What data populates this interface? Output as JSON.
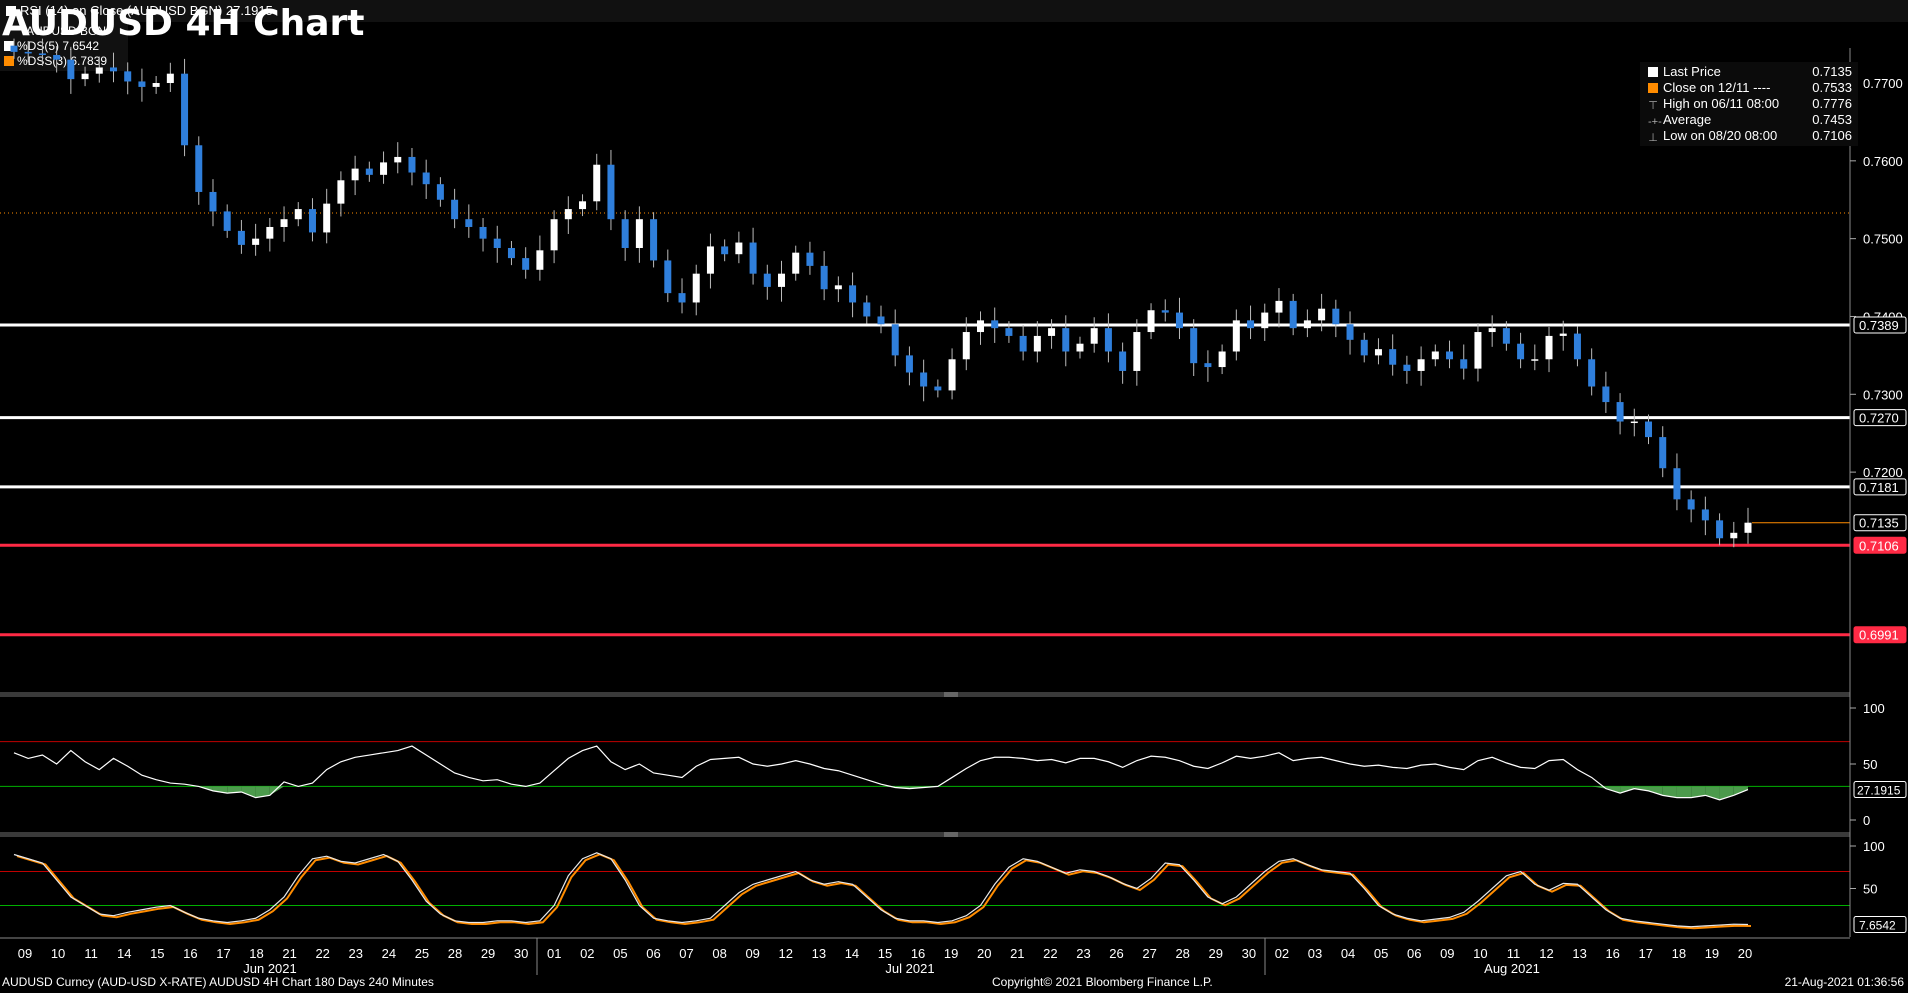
{
  "title": "AUDUSD 4H Chart",
  "footer": {
    "left": "AUDUSD Curncy (AUD-USD X-RATE) AUDUSD 4H Chart 180 Days 240 Minutes",
    "center": "Copyright© 2021 Bloomberg Finance L.P.",
    "right": "21-Aug-2021 01:36:56"
  },
  "legend": {
    "items": [
      {
        "label": "Last Price",
        "value": "0.7135",
        "color": "#ffffff"
      },
      {
        "label": "Close on 12/11 ----",
        "value": "0.7533",
        "color": "#ff8c00"
      },
      {
        "label": "High on 06/11 08:00",
        "value": "0.7776",
        "color": "#cfcfcf"
      },
      {
        "label": "Average",
        "value": "0.7453",
        "color": "#cfcfcf"
      },
      {
        "label": "Low on 08/20 08:00",
        "value": "0.7106",
        "color": "#cfcfcf"
      }
    ]
  },
  "rsi_legend": "RSI (14)  on Close (AUDUSD BGN) 27.1915",
  "sto_legend": {
    "name": "AUDUSD BGN",
    "ds": "%DS(5)  7.6542",
    "dss": "%DSS(3) 6.7839"
  },
  "colors": {
    "up": "#ffffff",
    "down": "#2f7fdc",
    "hline_white": "#ffffff",
    "hline_red": "#ff2a45",
    "close_dotted": "#ff8c00",
    "rsi_line": "#ffffff",
    "rsi_fill": "#4c9a4c",
    "sto_ds": "#e8e8e8",
    "sto_dss": "#ff8c00",
    "ob_line": "#c00000",
    "os_line": "#00b000"
  },
  "chart_data": {
    "type": "candlestick",
    "title": "AUDUSD 4H Chart",
    "ylim": [
      0.692,
      0.7745
    ],
    "price_ticks": [
      "0.7700",
      "0.7600",
      "0.7500",
      "0.7400",
      "0.7300",
      "0.7200"
    ],
    "x_day_labels": [
      "09",
      "10",
      "11",
      "14",
      "15",
      "16",
      "17",
      "18",
      "21",
      "22",
      "23",
      "24",
      "25",
      "28",
      "29",
      "30",
      "01",
      "02",
      "05",
      "06",
      "07",
      "08",
      "09",
      "12",
      "13",
      "14",
      "15",
      "16",
      "19",
      "20",
      "21",
      "22",
      "23",
      "26",
      "27",
      "28",
      "29",
      "30",
      "02",
      "03",
      "04",
      "05",
      "06",
      "09",
      "10",
      "11",
      "12",
      "13",
      "16",
      "17",
      "18",
      "19",
      "20"
    ],
    "month_labels": [
      "Jun 2021",
      "Jul 2021",
      "Aug 2021"
    ],
    "close_path": [
      0.774,
      0.7738,
      0.7736,
      0.773,
      0.7705,
      0.7712,
      0.772,
      0.7715,
      0.7702,
      0.7695,
      0.77,
      0.7712,
      0.762,
      0.756,
      0.7535,
      0.751,
      0.7492,
      0.75,
      0.7515,
      0.7525,
      0.7538,
      0.7508,
      0.7545,
      0.7575,
      0.759,
      0.7582,
      0.7598,
      0.7605,
      0.7585,
      0.757,
      0.755,
      0.7525,
      0.7515,
      0.75,
      0.7488,
      0.7475,
      0.746,
      0.7485,
      0.7525,
      0.7538,
      0.7548,
      0.7595,
      0.7525,
      0.7488,
      0.7525,
      0.7472,
      0.743,
      0.7418,
      0.7455,
      0.749,
      0.748,
      0.7495,
      0.7455,
      0.7438,
      0.7455,
      0.7482,
      0.7465,
      0.7435,
      0.744,
      0.7418,
      0.74,
      0.739,
      0.735,
      0.7328,
      0.731,
      0.7305,
      0.7345,
      0.738,
      0.7395,
      0.7385,
      0.7375,
      0.7355,
      0.7375,
      0.7385,
      0.7355,
      0.7365,
      0.7385,
      0.7355,
      0.733,
      0.738,
      0.7408,
      0.7405,
      0.7385,
      0.734,
      0.7335,
      0.7355,
      0.7395,
      0.7385,
      0.7405,
      0.742,
      0.7385,
      0.7395,
      0.741,
      0.739,
      0.737,
      0.735,
      0.7358,
      0.7338,
      0.733,
      0.7345,
      0.7355,
      0.7345,
      0.7333,
      0.738,
      0.7385,
      0.7365,
      0.7345,
      0.7345,
      0.7375,
      0.7378,
      0.7345,
      0.731,
      0.729,
      0.7265,
      0.7265,
      0.7245,
      0.7205,
      0.7165,
      0.7152,
      0.7138,
      0.7115,
      0.7122,
      0.7135
    ],
    "reference_lines": [
      {
        "value": 0.7389,
        "label": "0.7389",
        "color": "white"
      },
      {
        "value": 0.727,
        "label": "0.7270",
        "color": "white"
      },
      {
        "value": 0.7181,
        "label": "0.7181",
        "color": "white"
      },
      {
        "value": 0.7135,
        "label": "0.7135",
        "color": "last"
      },
      {
        "value": 0.7106,
        "label": "0.7106",
        "color": "red"
      },
      {
        "value": 0.6991,
        "label": "0.6991",
        "color": "red"
      }
    ],
    "close_dotted": 0.7533,
    "rsi": {
      "ylim": [
        0,
        100
      ],
      "ticks": [
        "100",
        "50",
        "0"
      ],
      "overbought": 70,
      "oversold": 30,
      "last_label": "27.1915",
      "values": [
        60,
        55,
        58,
        50,
        62,
        52,
        45,
        55,
        48,
        40,
        36,
        33,
        32,
        30,
        26,
        24,
        25,
        20,
        22,
        34,
        30,
        33,
        45,
        52,
        56,
        58,
        60,
        62,
        66,
        58,
        50,
        42,
        38,
        35,
        36,
        32,
        30,
        33,
        44,
        55,
        62,
        66,
        52,
        45,
        50,
        42,
        40,
        38,
        48,
        54,
        55,
        56,
        50,
        48,
        50,
        53,
        50,
        46,
        44,
        40,
        36,
        32,
        29,
        28,
        29,
        30,
        38,
        46,
        53,
        56,
        56,
        55,
        53,
        54,
        51,
        55,
        55,
        52,
        47,
        53,
        57,
        56,
        53,
        48,
        46,
        51,
        57,
        55,
        57,
        60,
        53,
        55,
        56,
        53,
        50,
        48,
        49,
        47,
        46,
        49,
        50,
        47,
        45,
        53,
        56,
        51,
        47,
        46,
        53,
        54,
        45,
        38,
        28,
        24,
        28,
        26,
        22,
        20,
        20,
        22,
        18,
        22,
        27.19
      ]
    },
    "stochastic": {
      "ylim": [
        0,
        100
      ],
      "ticks": [
        "100",
        "50"
      ],
      "overbought": 70,
      "oversold": 30,
      "last_label": "7.6542",
      "values": [
        90,
        85,
        80,
        60,
        40,
        30,
        20,
        18,
        22,
        25,
        28,
        30,
        22,
        15,
        12,
        10,
        12,
        15,
        25,
        40,
        65,
        85,
        88,
        82,
        80,
        85,
        90,
        82,
        60,
        35,
        20,
        12,
        10,
        10,
        12,
        12,
        10,
        12,
        30,
        65,
        85,
        92,
        85,
        60,
        30,
        15,
        12,
        10,
        12,
        15,
        30,
        45,
        55,
        60,
        65,
        70,
        60,
        55,
        58,
        55,
        40,
        25,
        15,
        12,
        12,
        10,
        12,
        18,
        30,
        55,
        75,
        85,
        82,
        75,
        68,
        72,
        70,
        64,
        56,
        50,
        62,
        80,
        78,
        60,
        40,
        32,
        40,
        55,
        70,
        82,
        85,
        78,
        72,
        70,
        68,
        50,
        30,
        20,
        15,
        12,
        14,
        16,
        22,
        35,
        50,
        65,
        70,
        55,
        48,
        56,
        55,
        40,
        25,
        15,
        12,
        10,
        8,
        6,
        5,
        6,
        7,
        8,
        7.65
      ]
    }
  }
}
